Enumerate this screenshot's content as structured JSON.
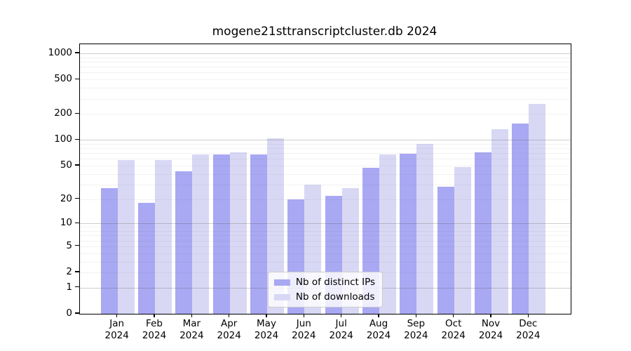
{
  "chart_data": {
    "type": "bar",
    "title": "mogene21sttranscriptcluster.db 2024",
    "categories": [
      "Jan",
      "Feb",
      "Mar",
      "Apr",
      "May",
      "Jun",
      "Jul",
      "Aug",
      "Sep",
      "Oct",
      "Nov",
      "Dec"
    ],
    "x_tick_year": "2024",
    "series": [
      {
        "name": "Nb of distinct IPs",
        "color": "#a8a8f3",
        "values": [
          27,
          18,
          43,
          67,
          67,
          20,
          22,
          47,
          69,
          28,
          71,
          154
        ]
      },
      {
        "name": "Nb of downloads",
        "color": "#d8d8f5",
        "values": [
          58,
          58,
          68,
          72,
          105,
          30,
          27,
          67,
          90,
          48,
          132,
          262
        ]
      }
    ],
    "y_axis": {
      "ticks": [
        0,
        1,
        2,
        5,
        10,
        20,
        50,
        100,
        200,
        500,
        1000
      ],
      "scale": "log1p",
      "max": 1275
    },
    "grid": true,
    "legend_position": "lower center",
    "colors": {
      "frame": "#000000",
      "major_grid": "#b8b8b8",
      "minor_grid": "#ececec",
      "background": "#ffffff"
    }
  }
}
